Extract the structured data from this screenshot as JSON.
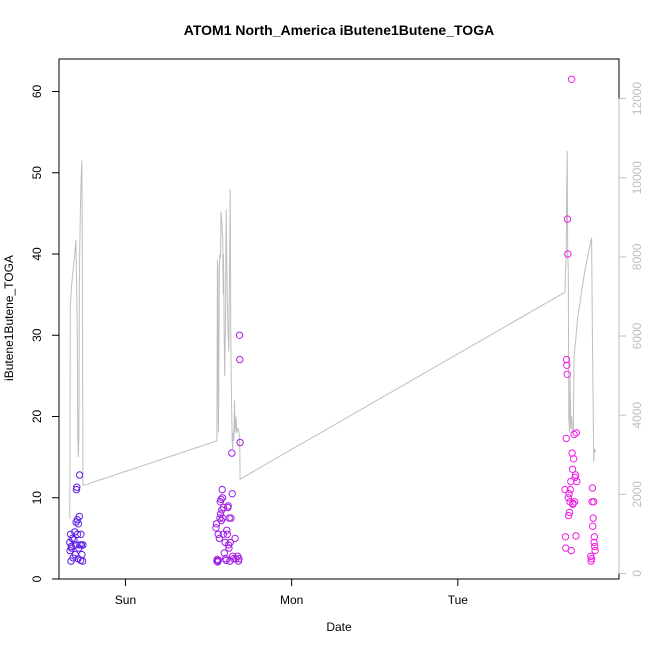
{
  "chart_data": {
    "type": "scatter",
    "title": "ATOM1 North_America iButene1Butene_TOGA",
    "xlabel": "Date",
    "ylabel": "iButene1Butene_TOGA",
    "x_unit": "days since Sunday 00:00",
    "xlim": [
      -0.4,
      2.97
    ],
    "ylim": [
      0,
      64
    ],
    "y2lim": [
      -140,
      13000
    ],
    "x_ticks": [
      {
        "value": 0,
        "label": "Sun"
      },
      {
        "value": 1,
        "label": "Mon"
      },
      {
        "value": 2,
        "label": "Tue"
      }
    ],
    "y_ticks": [
      {
        "value": 0,
        "label": "0"
      },
      {
        "value": 10,
        "label": "10"
      },
      {
        "value": 20,
        "label": "20"
      },
      {
        "value": 30,
        "label": "30"
      },
      {
        "value": 40,
        "label": "40"
      },
      {
        "value": 50,
        "label": "50"
      },
      {
        "value": 60,
        "label": "60"
      }
    ],
    "y2_ticks": [
      {
        "value": 0,
        "label": "0"
      },
      {
        "value": 2000,
        "label": "2000"
      },
      {
        "value": 4000,
        "label": "4000"
      },
      {
        "value": 6000,
        "label": "6000"
      },
      {
        "value": 8000,
        "label": "8000"
      },
      {
        "value": 10000,
        "label": "10000"
      },
      {
        "value": 12000,
        "label": "12000"
      }
    ],
    "grid": false,
    "series": [
      {
        "kind": "points",
        "color_start": "#5a1ee6",
        "color_end": "#f01ee6",
        "points": [
          [
            -0.335,
            4.5
          ],
          [
            -0.333,
            3.5
          ],
          [
            -0.33,
            5.5
          ],
          [
            -0.328,
            2.2
          ],
          [
            -0.326,
            4.0
          ],
          [
            -0.324,
            3.8
          ],
          [
            -0.32,
            5.0
          ],
          [
            -0.315,
            2.6
          ],
          [
            -0.31,
            4.8
          ],
          [
            -0.305,
            5.8
          ],
          [
            -0.302,
            3.0
          ],
          [
            -0.3,
            4.2
          ],
          [
            -0.297,
            7.0
          ],
          [
            -0.295,
            11.0
          ],
          [
            -0.293,
            11.3
          ],
          [
            -0.29,
            7.3
          ],
          [
            -0.288,
            5.5
          ],
          [
            -0.285,
            2.5
          ],
          [
            -0.283,
            6.8
          ],
          [
            -0.28,
            3.8
          ],
          [
            -0.278,
            7.7
          ],
          [
            -0.276,
            12.8
          ],
          [
            -0.274,
            4.2
          ],
          [
            -0.27,
            2.3
          ],
          [
            -0.268,
            5.5
          ],
          [
            -0.265,
            4.2
          ],
          [
            -0.262,
            3.0
          ],
          [
            -0.258,
            2.2
          ],
          [
            -0.256,
            4.2
          ],
          [
            0.545,
            6.3
          ],
          [
            0.548,
            6.8
          ],
          [
            0.55,
            2.2
          ],
          [
            0.552,
            2.4
          ],
          [
            0.555,
            2.1
          ],
          [
            0.558,
            5.5
          ],
          [
            0.56,
            2.3
          ],
          [
            0.565,
            5.0
          ],
          [
            0.568,
            7.5
          ],
          [
            0.57,
            9.5
          ],
          [
            0.572,
            8.0
          ],
          [
            0.575,
            9.8
          ],
          [
            0.577,
            7.2
          ],
          [
            0.58,
            8.5
          ],
          [
            0.582,
            11.0
          ],
          [
            0.584,
            10.0
          ],
          [
            0.586,
            7.5
          ],
          [
            0.588,
            5.5
          ],
          [
            0.59,
            8.8
          ],
          [
            0.595,
            3.2
          ],
          [
            0.6,
            4.5
          ],
          [
            0.603,
            2.5
          ],
          [
            0.606,
            2.3
          ],
          [
            0.61,
            6.0
          ],
          [
            0.613,
            5.5
          ],
          [
            0.615,
            8.8
          ],
          [
            0.618,
            9.0
          ],
          [
            0.62,
            4.2
          ],
          [
            0.623,
            3.8
          ],
          [
            0.625,
            7.5
          ],
          [
            0.628,
            2.2
          ],
          [
            0.63,
            4.5
          ],
          [
            0.635,
            7.5
          ],
          [
            0.64,
            15.5
          ],
          [
            0.642,
            10.5
          ],
          [
            0.645,
            2.8
          ],
          [
            0.65,
            2.5
          ],
          [
            0.66,
            5.0
          ],
          [
            0.665,
            2.5
          ],
          [
            0.675,
            2.8
          ],
          [
            0.68,
            2.2
          ],
          [
            0.683,
            2.5
          ],
          [
            0.686,
            30.0
          ],
          [
            0.688,
            27.0
          ],
          [
            0.69,
            16.8
          ],
          [
            2.645,
            11.0
          ],
          [
            2.648,
            5.2
          ],
          [
            2.65,
            3.8
          ],
          [
            2.652,
            17.3
          ],
          [
            2.654,
            27.0
          ],
          [
            2.656,
            26.3
          ],
          [
            2.658,
            25.2
          ],
          [
            2.66,
            44.3
          ],
          [
            2.662,
            40.0
          ],
          [
            2.665,
            10.0
          ],
          [
            2.667,
            7.8
          ],
          [
            2.67,
            10.5
          ],
          [
            2.672,
            8.2
          ],
          [
            2.675,
            9.5
          ],
          [
            2.677,
            11.0
          ],
          [
            2.68,
            12.0
          ],
          [
            2.683,
            3.5
          ],
          [
            2.685,
            61.5
          ],
          [
            2.688,
            15.5
          ],
          [
            2.69,
            13.5
          ],
          [
            2.692,
            9.2
          ],
          [
            2.694,
            9.3
          ],
          [
            2.697,
            14.8
          ],
          [
            2.7,
            17.8
          ],
          [
            2.703,
            9.5
          ],
          [
            2.706,
            12.5
          ],
          [
            2.709,
            12.8
          ],
          [
            2.711,
            5.3
          ],
          [
            2.713,
            18.0
          ],
          [
            2.716,
            12.0
          ],
          [
            2.8,
            2.8
          ],
          [
            2.802,
            2.2
          ],
          [
            2.805,
            2.5
          ],
          [
            2.808,
            9.5
          ],
          [
            2.81,
            11.2
          ],
          [
            2.812,
            6.5
          ],
          [
            2.815,
            7.5
          ],
          [
            2.818,
            9.5
          ],
          [
            2.82,
            4.5
          ],
          [
            2.822,
            5.2
          ],
          [
            2.824,
            4.0
          ],
          [
            2.826,
            3.5
          ]
        ]
      },
      {
        "kind": "line",
        "axis": "right",
        "color": "#bebebe",
        "points": [
          [
            -0.335,
            7.4
          ],
          [
            -0.332,
            33.5
          ],
          [
            -0.325,
            36
          ],
          [
            -0.315,
            38
          ],
          [
            -0.305,
            40
          ],
          [
            -0.298,
            41.7
          ],
          [
            -0.295,
            38
          ],
          [
            -0.29,
            30
          ],
          [
            -0.287,
            17.5
          ],
          [
            -0.283,
            15
          ],
          [
            -0.28,
            18
          ],
          [
            -0.277,
            38
          ],
          [
            -0.272,
            45
          ],
          [
            -0.266,
            50
          ],
          [
            -0.262,
            51.5
          ],
          [
            -0.258,
            30
          ],
          [
            -0.256,
            11.5
          ],
          [
            0.55,
            17.0
          ],
          [
            0.553,
            39.3
          ],
          [
            0.556,
            38
          ],
          [
            0.558,
            20
          ],
          [
            0.56,
            18
          ],
          [
            0.565,
            38.5
          ],
          [
            0.568,
            40
          ],
          [
            0.572,
            39.5
          ],
          [
            0.575,
            45.2
          ],
          [
            0.58,
            44
          ],
          [
            0.585,
            42
          ],
          [
            0.588,
            35
          ],
          [
            0.59,
            40
          ],
          [
            0.594,
            30
          ],
          [
            0.597,
            25
          ],
          [
            0.602,
            32
          ],
          [
            0.606,
            45.5
          ],
          [
            0.609,
            40
          ],
          [
            0.612,
            35
          ],
          [
            0.615,
            32
          ],
          [
            0.618,
            30
          ],
          [
            0.622,
            28
          ],
          [
            0.625,
            35
          ],
          [
            0.63,
            48
          ],
          [
            0.634,
            30
          ],
          [
            0.638,
            22
          ],
          [
            0.642,
            17
          ],
          [
            0.645,
            16
          ],
          [
            0.648,
            18
          ],
          [
            0.652,
            17
          ],
          [
            0.656,
            22
          ],
          [
            0.66,
            18
          ],
          [
            0.665,
            20
          ],
          [
            0.67,
            18
          ],
          [
            0.675,
            18.5
          ],
          [
            0.68,
            18.5
          ],
          [
            0.685,
            17.5
          ],
          [
            0.688,
            16
          ],
          [
            0.69,
            12.3
          ],
          [
            2.645,
            35.3
          ],
          [
            2.648,
            38
          ],
          [
            2.652,
            40
          ],
          [
            2.655,
            48
          ],
          [
            2.658,
            52.7
          ],
          [
            2.661,
            40
          ],
          [
            2.665,
            38
          ],
          [
            2.668,
            20
          ],
          [
            2.672,
            18
          ],
          [
            2.675,
            25
          ],
          [
            2.68,
            18.5
          ],
          [
            2.685,
            20
          ],
          [
            2.69,
            18
          ],
          [
            2.695,
            18.2
          ],
          [
            2.7,
            27.5
          ],
          [
            2.71,
            29.5
          ],
          [
            2.72,
            32
          ],
          [
            2.735,
            34
          ],
          [
            2.75,
            36
          ],
          [
            2.765,
            38
          ],
          [
            2.78,
            39.5
          ],
          [
            2.795,
            41
          ],
          [
            2.805,
            42
          ],
          [
            2.81,
            30
          ],
          [
            2.815,
            21
          ],
          [
            2.818,
            14.4
          ],
          [
            2.821,
            16
          ],
          [
            2.824,
            15.5
          ],
          [
            2.828,
            16
          ]
        ]
      }
    ]
  }
}
